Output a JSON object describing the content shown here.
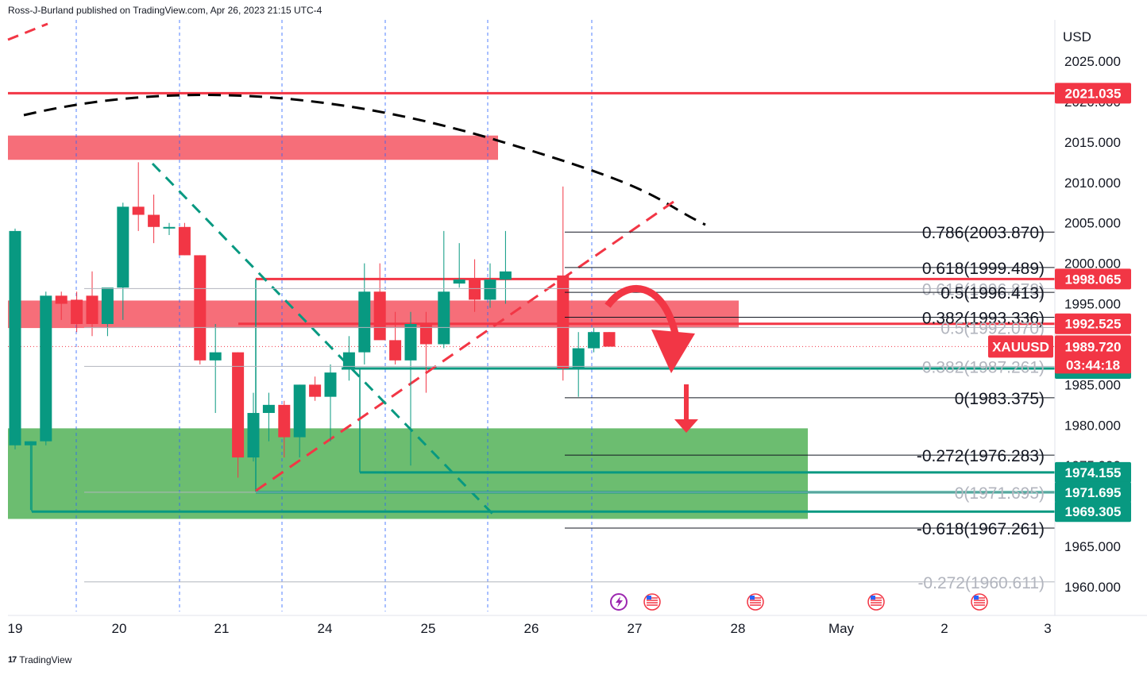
{
  "header": {
    "published": "Ross-J-Burland published on TradingView.com, Apr 26, 2023 21:15 UTC-4"
  },
  "footer": {
    "brand": "TradingView"
  },
  "chart_data": {
    "type": "candlestick",
    "symbol": "XAUUSD",
    "currency": "USD",
    "last_price": "1989.720",
    "countdown": "03:44:18",
    "ylim": [
      1958,
      2029
    ],
    "y_ticks": [
      "2025.000",
      "2020.000",
      "2015.000",
      "2010.000",
      "2005.000",
      "2000.000",
      "1995.000",
      "1990.000",
      "1985.000",
      "1980.000",
      "1975.000",
      "1970.000",
      "1965.000",
      "1960.000"
    ],
    "x_ticks": [
      "19",
      "20",
      "21",
      "24",
      "25",
      "26",
      "27",
      "28",
      "May",
      "2",
      "3"
    ],
    "candles": [
      {
        "o": 1977.5,
        "h": 2004.3,
        "l": 1977.0,
        "c": 2004.0
      },
      {
        "o": 1977.5,
        "h": 1978.0,
        "l": 1969.5,
        "c": 1978.0
      },
      {
        "o": 1978.0,
        "h": 1996.5,
        "l": 1977.5,
        "c": 1996.0
      },
      {
        "o": 1996.0,
        "h": 1996.5,
        "l": 1993.0,
        "c": 1995.0
      },
      {
        "o": 1995.5,
        "h": 1996.5,
        "l": 1991.5,
        "c": 1992.5
      },
      {
        "o": 1996.0,
        "h": 1999.0,
        "l": 1991.0,
        "c": 1992.5
      },
      {
        "o": 1992.5,
        "h": 1996.5,
        "l": 1991.0,
        "c": 1997.0
      },
      {
        "o": 1997.0,
        "h": 2007.5,
        "l": 1993.0,
        "c": 2007.0
      },
      {
        "o": 2007.0,
        "h": 2012.5,
        "l": 2004.0,
        "c": 2006.0
      },
      {
        "o": 2006.0,
        "h": 2008.5,
        "l": 2002.5,
        "c": 2004.5
      },
      {
        "o": 2004.5,
        "h": 2005.0,
        "l": 2003.5,
        "c": 2004.5
      },
      {
        "o": 2004.5,
        "h": 2005.0,
        "l": 2001.0,
        "c": 2001.0
      },
      {
        "o": 2001.0,
        "h": 2001.0,
        "l": 1987.5,
        "c": 1988.0
      },
      {
        "o": 1988.0,
        "h": 1992.5,
        "l": 1981.5,
        "c": 1989.0
      },
      {
        "o": 1989.0,
        "h": 1989.0,
        "l": 1973.5,
        "c": 1976.0
      },
      {
        "o": 1976.0,
        "h": 1984.0,
        "l": 1975.5,
        "c": 1981.5
      },
      {
        "o": 1981.5,
        "h": 1984.0,
        "l": 1978.0,
        "c": 1982.5
      },
      {
        "o": 1982.5,
        "h": 1983.0,
        "l": 1976.0,
        "c": 1978.5
      },
      {
        "o": 1978.5,
        "h": 1985.0,
        "l": 1976.0,
        "c": 1985.0
      },
      {
        "o": 1985.0,
        "h": 1986.0,
        "l": 1983.0,
        "c": 1983.5
      },
      {
        "o": 1983.5,
        "h": 1987.5,
        "l": 1978.0,
        "c": 1986.5
      },
      {
        "o": 1987.0,
        "h": 1991.0,
        "l": 1985.5,
        "c": 1989.0
      },
      {
        "o": 1989.0,
        "h": 2000.0,
        "l": 1987.5,
        "c": 1996.5
      },
      {
        "o": 1996.5,
        "h": 2000.0,
        "l": 1991.0,
        "c": 1990.5
      },
      {
        "o": 1990.5,
        "h": 1994.0,
        "l": 1987.5,
        "c": 1988.0
      },
      {
        "o": 1988.0,
        "h": 1994.0,
        "l": 1975.0,
        "c": 1992.5
      },
      {
        "o": 1992.5,
        "h": 1994.0,
        "l": 1984.0,
        "c": 1990.0
      },
      {
        "o": 1990.0,
        "h": 2004.0,
        "l": 1989.5,
        "c": 1996.5
      },
      {
        "o": 1997.5,
        "h": 2002.5,
        "l": 1997.0,
        "c": 1998.0
      },
      {
        "o": 1998.0,
        "h": 2000.5,
        "l": 1994.0,
        "c": 1995.5
      },
      {
        "o": 1995.5,
        "h": 2000.0,
        "l": 1994.5,
        "c": 1998.0
      },
      {
        "o": 1998.0,
        "h": 2004.0,
        "l": 1995.0,
        "c": 1999.0
      },
      {
        "o": 1998.5,
        "h": 2009.5,
        "l": 1985.5,
        "c": 1987.0
      },
      {
        "o": 1987.0,
        "h": 1991.5,
        "l": 1983.5,
        "c": 1989.5
      },
      {
        "o": 1989.5,
        "h": 1992.0,
        "l": 1989.0,
        "c": 1991.5
      },
      {
        "o": 1991.5,
        "h": 1991.5,
        "l": 1989.7,
        "c": 1989.7
      }
    ],
    "price_tags": [
      {
        "value": "2021.035",
        "color": "#f23645",
        "y": 2021.035
      },
      {
        "value": "1998.065",
        "color": "#f23645",
        "y": 1998.065
      },
      {
        "value": "1992.525",
        "color": "#f23645",
        "y": 1992.525
      },
      {
        "value": "1987.000",
        "color": "#089981",
        "y": 1987.0
      },
      {
        "value": "1974.155",
        "color": "#089981",
        "y": 1974.155
      },
      {
        "value": "1971.695",
        "color": "#089981",
        "y": 1971.695
      },
      {
        "value": "1969.305",
        "color": "#089981",
        "y": 1969.305
      }
    ],
    "fib_levels": [
      {
        "label": "0.786(2003.870)",
        "y": 2003.87,
        "faded": false
      },
      {
        "label": "0.618(1999.489)",
        "y": 1999.489,
        "faded": false
      },
      {
        "label": "0.618(1996.878)",
        "y": 1996.878,
        "faded": true
      },
      {
        "label": "0.5(1996.413)",
        "y": 1996.413,
        "faded": false
      },
      {
        "label": "0.382(1993.336)",
        "y": 1993.336,
        "faded": false
      },
      {
        "label": "0.5(1992.070)",
        "y": 1992.07,
        "faded": true
      },
      {
        "label": "0.382(1987.261)",
        "y": 1987.261,
        "faded": true
      },
      {
        "label": "0(1983.375)",
        "y": 1983.375,
        "faded": false
      },
      {
        "label": "-0.272(1976.283)",
        "y": 1976.283,
        "faded": false
      },
      {
        "label": "0(1971.695)",
        "y": 1971.695,
        "faded": true
      },
      {
        "label": "-0.618(1967.261)",
        "y": 1967.261,
        "faded": false
      },
      {
        "label": "-0.272(1960.611)",
        "y": 1960.611,
        "faded": true
      }
    ],
    "colors": {
      "up": "#089981",
      "down": "#f23645",
      "resistance_zone": "#f23645",
      "support_zone": "#4caf50"
    }
  }
}
